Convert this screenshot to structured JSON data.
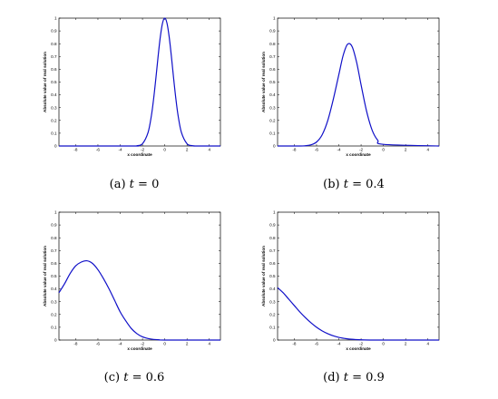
{
  "chart_data": [
    {
      "type": "line",
      "caption_prefix": "(a)",
      "caption_var": "t",
      "caption_eq": "= 0",
      "xlabel": "x coordinate",
      "ylabel": "Absolute value of real solution",
      "xlim": [
        -9.5,
        5
      ],
      "ylim": [
        0,
        1
      ],
      "xticks": [
        -8,
        -6,
        -4,
        -2,
        0,
        2,
        4
      ],
      "yticks": [
        0,
        0.1,
        0.2,
        0.3,
        0.4,
        0.5,
        0.6,
        0.7,
        0.8,
        0.9,
        1
      ],
      "series": [
        {
          "x": [
            -9.5,
            -3,
            -2.5,
            -2,
            -1.5,
            -1.2,
            -1,
            -0.8,
            -0.6,
            -0.4,
            -0.2,
            0,
            0.2,
            0.4,
            0.6,
            0.8,
            1,
            1.2,
            1.5,
            2,
            2.5,
            3,
            5
          ],
          "y": [
            0,
            0,
            0.002,
            0.018,
            0.105,
            0.237,
            0.368,
            0.527,
            0.698,
            0.852,
            0.961,
            1,
            0.961,
            0.852,
            0.698,
            0.527,
            0.368,
            0.237,
            0.105,
            0.018,
            0.002,
            0,
            0
          ]
        }
      ]
    },
    {
      "type": "line",
      "caption_prefix": "(b)",
      "caption_var": "t",
      "caption_eq": "= 0.4",
      "xlabel": "x coordinate",
      "ylabel": "Absolute value of real solution",
      "xlim": [
        -9.5,
        5
      ],
      "ylim": [
        0,
        1
      ],
      "xticks": [
        -8,
        -6,
        -4,
        -2,
        0,
        2,
        4
      ],
      "yticks": [
        0,
        0.1,
        0.2,
        0.3,
        0.4,
        0.5,
        0.6,
        0.7,
        0.8,
        0.9,
        1
      ],
      "series": [
        {
          "x": [
            -9.5,
            -7.5,
            -7,
            -6.5,
            -6,
            -5.5,
            -5,
            -4.5,
            -4,
            -3.6,
            -3.2,
            -2.8,
            -2.4,
            -2,
            -1.5,
            -1,
            -0.5,
            0,
            5
          ],
          "y": [
            0,
            0,
            0.002,
            0.009,
            0.031,
            0.087,
            0.197,
            0.364,
            0.558,
            0.712,
            0.797,
            0.776,
            0.654,
            0.478,
            0.27,
            0.122,
            0.044,
            0.013,
            0
          ]
        }
      ]
    },
    {
      "type": "line",
      "caption_prefix": "(c)",
      "caption_var": "t",
      "caption_eq": "= 0.6",
      "xlabel": "x coordinate",
      "ylabel": "Absolute value of real solution",
      "xlim": [
        -9.5,
        5
      ],
      "ylim": [
        0,
        1
      ],
      "xticks": [
        -8,
        -6,
        -4,
        -2,
        0,
        2,
        4
      ],
      "yticks": [
        0,
        0.1,
        0.2,
        0.3,
        0.4,
        0.5,
        0.6,
        0.7,
        0.8,
        0.9,
        1
      ],
      "series": [
        {
          "x": [
            -9.5,
            -9,
            -8.5,
            -8,
            -7.5,
            -7,
            -6.5,
            -6,
            -5.5,
            -5,
            -4.5,
            -4,
            -3.5,
            -3,
            -2.5,
            -2,
            -1.5,
            -1,
            -0.5,
            0,
            5
          ],
          "y": [
            0.37,
            0.44,
            0.52,
            0.58,
            0.61,
            0.62,
            0.6,
            0.55,
            0.48,
            0.4,
            0.31,
            0.22,
            0.15,
            0.09,
            0.05,
            0.025,
            0.012,
            0.005,
            0.002,
            0,
            0
          ]
        }
      ]
    },
    {
      "type": "line",
      "caption_prefix": "(d)",
      "caption_var": "t",
      "caption_eq": "= 0.9",
      "xlabel": "x coordinate",
      "ylabel": "Absolute value of real solution",
      "xlim": [
        -9.5,
        5
      ],
      "ylim": [
        0,
        1
      ],
      "xticks": [
        -8,
        -6,
        -4,
        -2,
        0,
        2,
        4
      ],
      "yticks": [
        0,
        0.1,
        0.2,
        0.3,
        0.4,
        0.5,
        0.6,
        0.7,
        0.8,
        0.9,
        1
      ],
      "series": [
        {
          "x": [
            -9.5,
            -9,
            -8.5,
            -8,
            -7.5,
            -7,
            -6.5,
            -6,
            -5.5,
            -5,
            -4.5,
            -4,
            -3.5,
            -3,
            -2.5,
            -2,
            -1,
            0,
            5
          ],
          "y": [
            0.41,
            0.37,
            0.32,
            0.27,
            0.22,
            0.175,
            0.135,
            0.1,
            0.072,
            0.05,
            0.033,
            0.021,
            0.013,
            0.007,
            0.004,
            0.002,
            0,
            0,
            0
          ]
        }
      ]
    }
  ]
}
